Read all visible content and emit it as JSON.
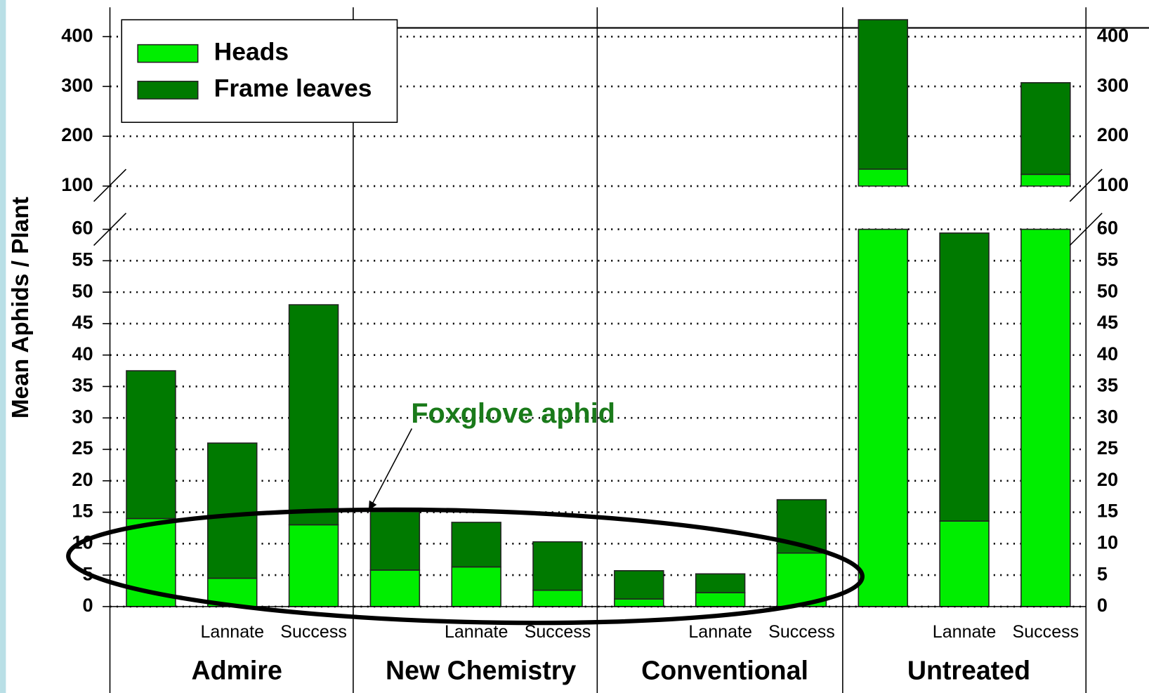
{
  "chart_data": {
    "type": "bar",
    "stacked": true,
    "ylabel": "Mean Aphids / Plant",
    "annotation": "Foxglove aphid",
    "legend": "upper left",
    "grid": true,
    "groups": [
      "Admire",
      "New Chemistry",
      "Conventional",
      "Untreated"
    ],
    "categories": [
      null,
      "Lannate",
      "Success",
      null,
      "Lannate",
      "Success",
      null,
      "Lannate",
      "Success",
      null,
      "Lannate",
      "Success"
    ],
    "y_segments": [
      {
        "ylim": [
          0,
          60
        ],
        "yticks": [
          0,
          5,
          10,
          15,
          20,
          25,
          30,
          35,
          40,
          45,
          50,
          55,
          60
        ]
      },
      {
        "ylim": [
          100,
          400
        ],
        "yticks": [
          100,
          200,
          300,
          400
        ]
      }
    ],
    "series": [
      {
        "name": "Heads",
        "color": "#00ee00",
        "values": [
          14,
          4.5,
          13,
          5.8,
          6.3,
          2.6,
          1.2,
          2.2,
          8.5,
          134,
          13.6,
          123.5
        ]
      },
      {
        "name": "Frame leaves",
        "color": "#007a00",
        "values": [
          23.5,
          21.5,
          35,
          9.3,
          7.1,
          7.7,
          4.5,
          3,
          8.5,
          300,
          45.8,
          184
        ]
      }
    ]
  }
}
